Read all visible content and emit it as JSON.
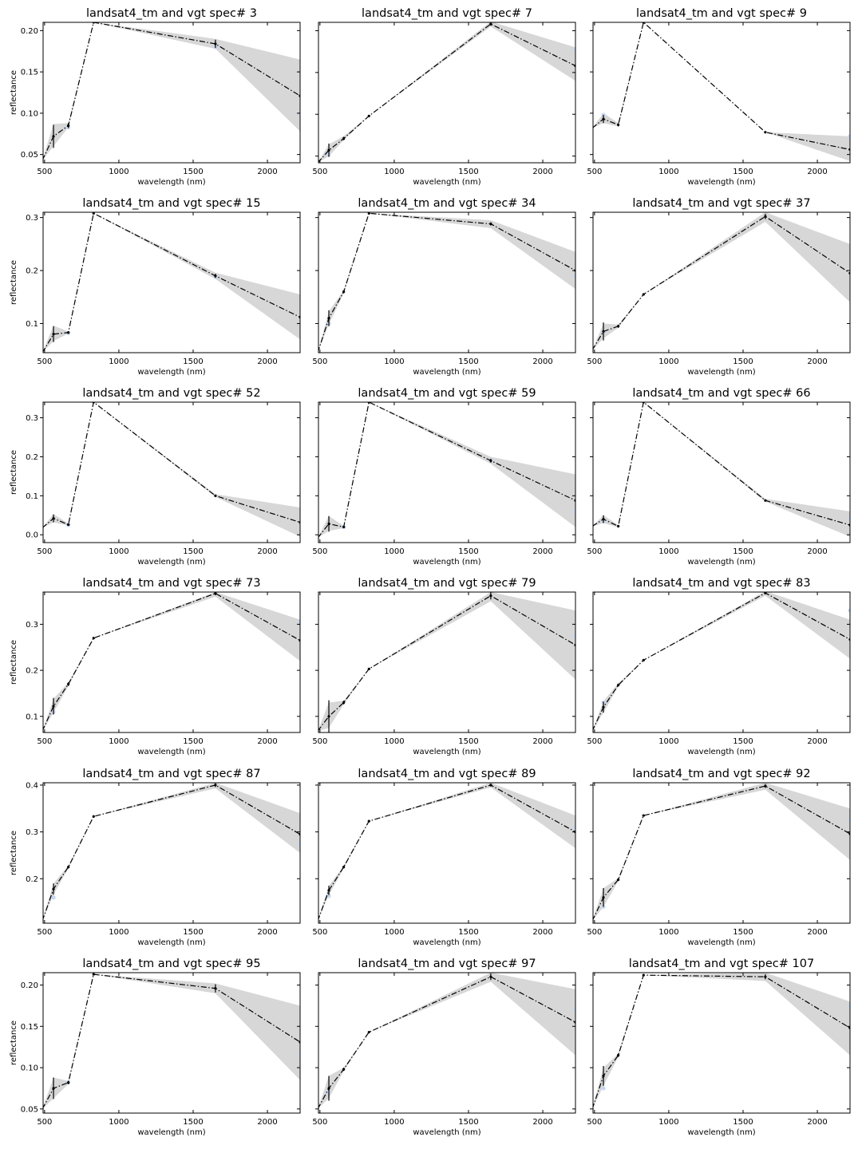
{
  "figure": {
    "xlabel": "wavelength (nm)",
    "ylabel": "reflectance"
  },
  "colors": {
    "band": "#bdbdbd",
    "line": "#000000",
    "observation": "#c6d6f3"
  },
  "chart_data": [
    {
      "type": "line",
      "title": "landsat4_tm and vgt spec# 3",
      "xlim": [
        490,
        2220
      ],
      "ylim": [
        0.04,
        0.21
      ],
      "yticks": [
        0.05,
        0.1,
        0.15,
        0.2
      ],
      "ytick_labels": [
        "0.05",
        "0.10",
        "0.15",
        "0.20"
      ],
      "xticks": [
        500,
        1000,
        1500,
        2000
      ],
      "x": [
        485,
        560,
        660,
        830,
        1650,
        2220
      ],
      "y": [
        0.043,
        0.072,
        0.085,
        0.21,
        0.184,
        0.121
      ],
      "err": [
        0,
        0.014,
        0.003,
        0,
        0.005,
        0
      ],
      "band_lo": [
        0.043,
        0.06,
        0.083,
        0.21,
        0.178,
        0.078
      ],
      "band_hi": [
        0.043,
        0.087,
        0.088,
        0.21,
        0.19,
        0.165
      ],
      "obs": [
        [
          660,
          0.083
        ],
        [
          1650,
          0.18
        ],
        [
          2220,
          0.1
        ]
      ]
    },
    {
      "type": "line",
      "title": "landsat4_tm and vgt spec# 7",
      "xlim": [
        490,
        2220
      ],
      "ylim": [
        0.042,
        0.21
      ],
      "yticks": [],
      "ytick_labels": [],
      "xticks": [
        500,
        1000,
        1500,
        2000
      ],
      "x": [
        485,
        560,
        660,
        830,
        1650,
        2220
      ],
      "y": [
        0.042,
        0.057,
        0.071,
        0.098,
        0.208,
        0.158
      ],
      "err": [
        0,
        0.008,
        0.002,
        0,
        0.002,
        0
      ],
      "band_lo": [
        0.042,
        0.05,
        0.069,
        0.098,
        0.205,
        0.14
      ],
      "band_hi": [
        0.042,
        0.064,
        0.074,
        0.098,
        0.211,
        0.18
      ],
      "obs": [
        [
          560,
          0.052
        ],
        [
          2220,
          0.178
        ]
      ]
    },
    {
      "type": "line",
      "title": "landsat4_tm and vgt spec# 9",
      "xlim": [
        490,
        2220
      ],
      "ylim": [
        0.04,
        0.21
      ],
      "yticks": [],
      "ytick_labels": [],
      "xticks": [
        500,
        1000,
        1500,
        2000
      ],
      "x": [
        485,
        560,
        660,
        830,
        1650,
        2220
      ],
      "y": [
        0.082,
        0.093,
        0.086,
        0.21,
        0.077,
        0.056
      ],
      "err": [
        0,
        0.005,
        0.002,
        0,
        0,
        0
      ],
      "band_lo": [
        0.082,
        0.088,
        0.084,
        0.21,
        0.077,
        0.042
      ],
      "band_hi": [
        0.082,
        0.1,
        0.088,
        0.21,
        0.077,
        0.072
      ],
      "obs": [
        [
          560,
          0.098
        ],
        [
          2220,
          0.072
        ]
      ]
    },
    {
      "type": "line",
      "title": "landsat4_tm and vgt spec# 15",
      "xlim": [
        490,
        2220
      ],
      "ylim": [
        0.045,
        0.31
      ],
      "yticks": [
        0.1,
        0.2,
        0.3
      ],
      "ytick_labels": [
        "0.1",
        "0.2",
        "0.3"
      ],
      "xticks": [
        500,
        1000,
        1500,
        2000
      ],
      "x": [
        485,
        560,
        660,
        830,
        1650,
        2220
      ],
      "y": [
        0.045,
        0.08,
        0.083,
        0.308,
        0.19,
        0.112
      ],
      "err": [
        0,
        0.015,
        0.002,
        0,
        0.004,
        0
      ],
      "band_lo": [
        0.045,
        0.067,
        0.081,
        0.308,
        0.184,
        0.07
      ],
      "band_hi": [
        0.045,
        0.096,
        0.085,
        0.308,
        0.196,
        0.155
      ],
      "obs": [
        [
          660,
          0.082
        ],
        [
          1650,
          0.188
        ]
      ]
    },
    {
      "type": "line",
      "title": "landsat4_tm and vgt spec# 34",
      "xlim": [
        490,
        2220
      ],
      "ylim": [
        0.045,
        0.31
      ],
      "yticks": [],
      "ytick_labels": [],
      "xticks": [
        500,
        1000,
        1500,
        2000
      ],
      "x": [
        485,
        560,
        660,
        830,
        1650,
        2220
      ],
      "y": [
        0.045,
        0.11,
        0.16,
        0.308,
        0.288,
        0.2
      ],
      "err": [
        0,
        0.015,
        0.003,
        0,
        0.003,
        0
      ],
      "band_lo": [
        0.045,
        0.098,
        0.157,
        0.308,
        0.28,
        0.165
      ],
      "band_hi": [
        0.045,
        0.123,
        0.163,
        0.308,
        0.295,
        0.235
      ],
      "obs": [
        [
          560,
          0.1
        ],
        [
          2220,
          0.19
        ]
      ]
    },
    {
      "type": "line",
      "title": "landsat4_tm and vgt spec# 37",
      "xlim": [
        490,
        2220
      ],
      "ylim": [
        0.045,
        0.31
      ],
      "yticks": [],
      "ytick_labels": [],
      "xticks": [
        500,
        1000,
        1500,
        2000
      ],
      "x": [
        485,
        560,
        660,
        830,
        1650,
        2220
      ],
      "y": [
        0.05,
        0.085,
        0.095,
        0.155,
        0.302,
        0.195
      ],
      "err": [
        0,
        0.017,
        0.003,
        0,
        0.005,
        0
      ],
      "band_lo": [
        0.05,
        0.072,
        0.092,
        0.155,
        0.292,
        0.14
      ],
      "band_hi": [
        0.05,
        0.1,
        0.098,
        0.155,
        0.31,
        0.25
      ],
      "obs": [
        [
          560,
          0.085
        ]
      ]
    },
    {
      "type": "line",
      "title": "landsat4_tm and vgt spec# 52",
      "xlim": [
        490,
        2220
      ],
      "ylim": [
        -0.02,
        0.34
      ],
      "yticks": [
        0.0,
        0.1,
        0.2,
        0.3
      ],
      "ytick_labels": [
        "0.0",
        "0.1",
        "0.2",
        "0.3"
      ],
      "xticks": [
        500,
        1000,
        1500,
        2000
      ],
      "x": [
        485,
        560,
        660,
        830,
        1650,
        2220
      ],
      "y": [
        0.018,
        0.042,
        0.026,
        0.34,
        0.1,
        0.032
      ],
      "err": [
        0,
        0.01,
        0.003,
        0,
        0.002,
        0
      ],
      "band_lo": [
        0.018,
        0.032,
        0.023,
        0.34,
        0.097,
        -0.005
      ],
      "band_hi": [
        0.018,
        0.053,
        0.029,
        0.34,
        0.104,
        0.07
      ],
      "obs": [
        [
          660,
          0.025
        ]
      ]
    },
    {
      "type": "line",
      "title": "landsat4_tm and vgt spec# 59",
      "xlim": [
        490,
        2220
      ],
      "ylim": [
        -0.02,
        0.34
      ],
      "yticks": [],
      "ytick_labels": [],
      "xticks": [
        500,
        1000,
        1500,
        2000
      ],
      "x": [
        485,
        560,
        660,
        830,
        1650,
        2220
      ],
      "y": [
        -0.008,
        0.028,
        0.02,
        0.34,
        0.19,
        0.088
      ],
      "err": [
        0,
        0.02,
        0.003,
        0,
        0.005,
        0
      ],
      "band_lo": [
        -0.008,
        0.01,
        0.017,
        0.34,
        0.182,
        0.02
      ],
      "band_hi": [
        -0.008,
        0.048,
        0.023,
        0.34,
        0.2,
        0.155
      ],
      "obs": [
        [
          660,
          0.02
        ],
        [
          1650,
          0.19
        ],
        [
          2220,
          0.06
        ]
      ]
    },
    {
      "type": "line",
      "title": "landsat4_tm and vgt spec# 66",
      "xlim": [
        490,
        2220
      ],
      "ylim": [
        -0.02,
        0.34
      ],
      "yticks": [],
      "ytick_labels": [],
      "xticks": [
        500,
        1000,
        1500,
        2000
      ],
      "x": [
        485,
        560,
        660,
        830,
        1650,
        2220
      ],
      "y": [
        0.022,
        0.04,
        0.022,
        0.34,
        0.088,
        0.025
      ],
      "err": [
        0,
        0.01,
        0.003,
        0,
        0.002,
        0
      ],
      "band_lo": [
        0.022,
        0.03,
        0.019,
        0.34,
        0.085,
        -0.005
      ],
      "band_hi": [
        0.022,
        0.05,
        0.025,
        0.34,
        0.092,
        0.06
      ],
      "obs": [
        [
          560,
          0.035
        ],
        [
          2220,
          0.04
        ]
      ]
    },
    {
      "type": "line",
      "title": "landsat4_tm and vgt spec# 73",
      "xlim": [
        490,
        2220
      ],
      "ylim": [
        0.065,
        0.37
      ],
      "yticks": [
        0.1,
        0.2,
        0.3
      ],
      "ytick_labels": [
        "0.1",
        "0.2",
        "0.3"
      ],
      "xticks": [
        500,
        1000,
        1500,
        2000
      ],
      "x": [
        485,
        560,
        660,
        830,
        1650,
        2220
      ],
      "y": [
        0.068,
        0.122,
        0.17,
        0.27,
        0.367,
        0.265
      ],
      "err": [
        0,
        0.018,
        0.004,
        0,
        0.004,
        0
      ],
      "band_lo": [
        0.068,
        0.108,
        0.166,
        0.27,
        0.36,
        0.22
      ],
      "band_hi": [
        0.068,
        0.138,
        0.174,
        0.27,
        0.37,
        0.31
      ],
      "obs": [
        [
          560,
          0.11
        ],
        [
          2220,
          0.305
        ]
      ]
    },
    {
      "type": "line",
      "title": "landsat4_tm and vgt spec# 79",
      "xlim": [
        490,
        2220
      ],
      "ylim": [
        0.065,
        0.37
      ],
      "yticks": [],
      "ytick_labels": [],
      "xticks": [
        500,
        1000,
        1500,
        2000
      ],
      "x": [
        485,
        560,
        660,
        830,
        1650,
        2220
      ],
      "y": [
        0.068,
        0.1,
        0.13,
        0.203,
        0.362,
        0.255
      ],
      "err": [
        0,
        0.035,
        0.004,
        0,
        0.008,
        0
      ],
      "band_lo": [
        0.068,
        0.075,
        0.126,
        0.203,
        0.35,
        0.18
      ],
      "band_hi": [
        0.068,
        0.13,
        0.134,
        0.203,
        0.37,
        0.33
      ],
      "obs": [
        [
          2220,
          0.275
        ]
      ]
    },
    {
      "type": "line",
      "title": "landsat4_tm and vgt spec# 83",
      "xlim": [
        490,
        2220
      ],
      "ylim": [
        0.065,
        0.37
      ],
      "yticks": [],
      "ytick_labels": [],
      "xticks": [
        500,
        1000,
        1500,
        2000
      ],
      "x": [
        485,
        560,
        660,
        830,
        1650,
        2220
      ],
      "y": [
        0.068,
        0.12,
        0.168,
        0.222,
        0.368,
        0.267
      ],
      "err": [
        0,
        0.012,
        0.003,
        0,
        0.003,
        0
      ],
      "band_lo": [
        0.068,
        0.108,
        0.165,
        0.222,
        0.362,
        0.225
      ],
      "band_hi": [
        0.068,
        0.133,
        0.172,
        0.222,
        0.372,
        0.31
      ],
      "obs": [
        [
          560,
          0.13
        ],
        [
          2220,
          0.33
        ]
      ]
    },
    {
      "type": "line",
      "title": "landsat4_tm and vgt spec# 87",
      "xlim": [
        490,
        2220
      ],
      "ylim": [
        0.105,
        0.405
      ],
      "yticks": [
        0.2,
        0.3,
        0.4
      ],
      "ytick_labels": [
        "0.2",
        "0.3",
        "0.4"
      ],
      "xticks": [
        500,
        1000,
        1500,
        2000
      ],
      "x": [
        485,
        560,
        660,
        830,
        1650,
        2220
      ],
      "y": [
        0.11,
        0.178,
        0.225,
        0.333,
        0.4,
        0.295
      ],
      "err": [
        0,
        0.012,
        0.003,
        0,
        0.004,
        0
      ],
      "band_lo": [
        0.11,
        0.166,
        0.222,
        0.333,
        0.393,
        0.255
      ],
      "band_hi": [
        0.11,
        0.19,
        0.228,
        0.333,
        0.405,
        0.34
      ],
      "obs": [
        [
          560,
          0.16
        ],
        [
          2220,
          0.275
        ]
      ]
    },
    {
      "type": "line",
      "title": "landsat4_tm and vgt spec# 89",
      "xlim": [
        490,
        2220
      ],
      "ylim": [
        0.105,
        0.405
      ],
      "yticks": [],
      "ytick_labels": [],
      "xticks": [
        500,
        1000,
        1500,
        2000
      ],
      "x": [
        485,
        560,
        660,
        830,
        1650,
        2220
      ],
      "y": [
        0.11,
        0.175,
        0.225,
        0.323,
        0.4,
        0.3
      ],
      "err": [
        0,
        0.01,
        0.003,
        0,
        0.003,
        0
      ],
      "band_lo": [
        0.11,
        0.165,
        0.222,
        0.323,
        0.395,
        0.265
      ],
      "band_hi": [
        0.11,
        0.185,
        0.228,
        0.323,
        0.405,
        0.335
      ],
      "obs": [
        [
          560,
          0.163
        ],
        [
          2220,
          0.31
        ]
      ]
    },
    {
      "type": "line",
      "title": "landsat4_tm and vgt spec# 92",
      "xlim": [
        490,
        2220
      ],
      "ylim": [
        0.105,
        0.405
      ],
      "yticks": [],
      "ytick_labels": [],
      "xticks": [
        500,
        1000,
        1500,
        2000
      ],
      "x": [
        485,
        560,
        660,
        830,
        1650,
        2220
      ],
      "y": [
        0.11,
        0.16,
        0.198,
        0.335,
        0.398,
        0.296
      ],
      "err": [
        0,
        0.02,
        0.003,
        0,
        0.004,
        0
      ],
      "band_lo": [
        0.11,
        0.14,
        0.195,
        0.335,
        0.39,
        0.24
      ],
      "band_hi": [
        0.11,
        0.18,
        0.201,
        0.335,
        0.405,
        0.35
      ],
      "obs": [
        [
          560,
          0.14
        ],
        [
          2220,
          0.325
        ]
      ]
    },
    {
      "type": "line",
      "title": "landsat4_tm and vgt spec# 95",
      "xlim": [
        490,
        2220
      ],
      "ylim": [
        0.045,
        0.215
      ],
      "yticks": [
        0.05,
        0.1,
        0.15,
        0.2
      ],
      "ytick_labels": [
        "0.05",
        "0.10",
        "0.15",
        "0.20"
      ],
      "xticks": [
        500,
        1000,
        1500,
        2000
      ],
      "x": [
        485,
        560,
        660,
        830,
        1650,
        2220
      ],
      "y": [
        0.05,
        0.075,
        0.082,
        0.213,
        0.196,
        0.131
      ],
      "err": [
        0,
        0.013,
        0.002,
        0,
        0.005,
        0
      ],
      "band_lo": [
        0.05,
        0.063,
        0.08,
        0.213,
        0.19,
        0.085
      ],
      "band_hi": [
        0.05,
        0.088,
        0.084,
        0.213,
        0.202,
        0.175
      ],
      "obs": [
        [
          660,
          0.082
        ],
        [
          2220,
          0.115
        ]
      ]
    },
    {
      "type": "line",
      "title": "landsat4_tm and vgt spec# 97",
      "xlim": [
        490,
        2220
      ],
      "ylim": [
        0.045,
        0.215
      ],
      "yticks": [],
      "ytick_labels": [],
      "xticks": [
        500,
        1000,
        1500,
        2000
      ],
      "x": [
        485,
        560,
        660,
        830,
        1650,
        2220
      ],
      "y": [
        0.05,
        0.075,
        0.098,
        0.143,
        0.21,
        0.155
      ],
      "err": [
        0,
        0.015,
        0.002,
        0,
        0.004,
        0
      ],
      "band_lo": [
        0.05,
        0.063,
        0.096,
        0.143,
        0.204,
        0.115
      ],
      "band_hi": [
        0.05,
        0.09,
        0.1,
        0.143,
        0.215,
        0.195
      ],
      "obs": [
        [
          560,
          0.07
        ],
        [
          2220,
          0.17
        ]
      ]
    },
    {
      "type": "line",
      "title": "landsat4_tm and vgt spec# 107",
      "xlim": [
        490,
        2220
      ],
      "ylim": [
        0.045,
        0.215
      ],
      "yticks": [],
      "ytick_labels": [],
      "xticks": [
        500,
        1000,
        1500,
        2000
      ],
      "x": [
        485,
        560,
        660,
        830,
        1650,
        2220
      ],
      "y": [
        0.05,
        0.09,
        0.115,
        0.212,
        0.21,
        0.148
      ],
      "err": [
        0,
        0.012,
        0.002,
        0,
        0.003,
        0
      ],
      "band_lo": [
        0.05,
        0.078,
        0.113,
        0.212,
        0.205,
        0.115
      ],
      "band_hi": [
        0.05,
        0.1,
        0.117,
        0.212,
        0.215,
        0.18
      ],
      "obs": [
        [
          560,
          0.075
        ],
        [
          2220,
          0.175
        ]
      ]
    }
  ]
}
